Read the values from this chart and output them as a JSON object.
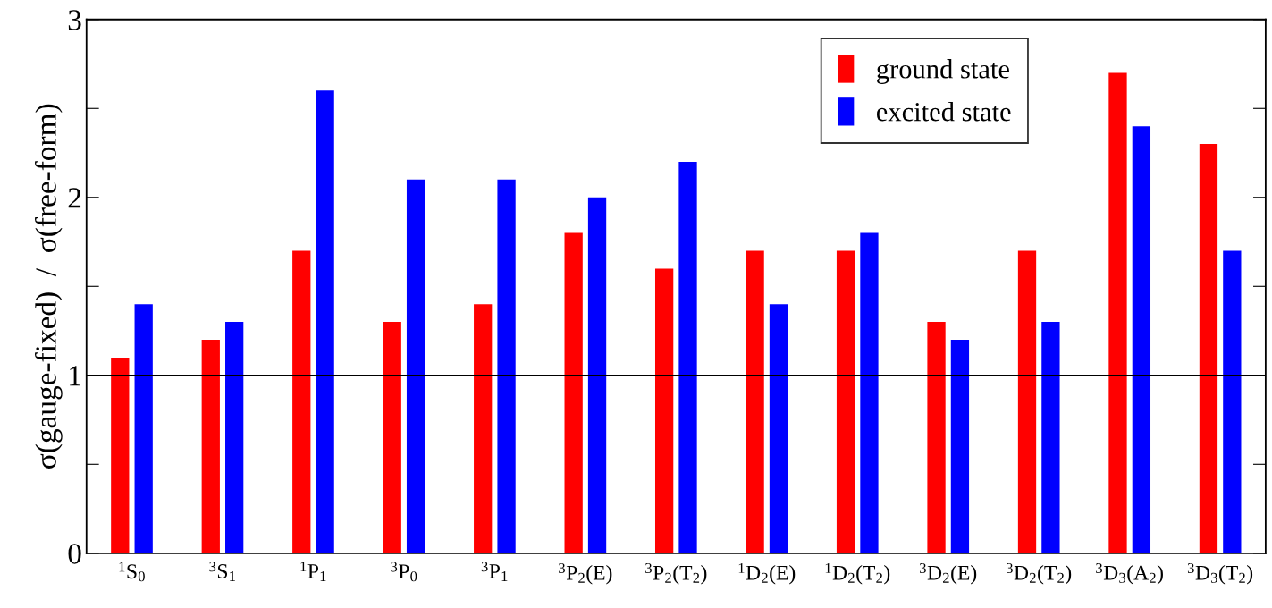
{
  "chart_data": {
    "type": "bar",
    "ylabel": "σ(gauge-fixed)  /  σ(free-form)",
    "categories": [
      "$^{1}$S$_{0}$",
      "$^{3}$S$_{1}$",
      "$^{1}$P$_{1}$",
      "$^{3}$P$_{0}$",
      "$^{3}$P$_{1}$",
      "$^{3}$P$_{2}$(E)",
      "$^{3}$P$_{2}$(T$_{2}$)",
      "$^{1}$D$_{2}$(E)",
      "$^{1}$D$_{2}$(T$_{2}$)",
      "$^{3}$D$_{2}$(E)",
      "$^{3}$D$_{2}$(T$_{2}$)",
      "$^{3}$D$_{3}$(A$_{2}$)",
      "$^{3}$D$_{3}$(T$_{2}$)"
    ],
    "series": [
      {
        "name": "ground state",
        "color": "#ff0000",
        "values": [
          1.1,
          1.2,
          1.7,
          1.3,
          1.4,
          1.8,
          1.6,
          1.7,
          1.7,
          1.3,
          1.7,
          2.7,
          2.3
        ]
      },
      {
        "name": "excited state",
        "color": "#0000ff",
        "values": [
          1.4,
          1.3,
          2.6,
          2.1,
          2.1,
          2.0,
          2.2,
          1.4,
          1.8,
          1.2,
          1.3,
          2.4,
          1.7
        ]
      }
    ],
    "ylim": [
      0,
      3
    ],
    "yticks": [
      0,
      {
        "value": 0.5,
        "label": null
      },
      1,
      {
        "value": 1.5,
        "label": null
      },
      2,
      {
        "value": 2.5,
        "label": null
      },
      3
    ],
    "ref_lines": [
      {
        "axis": "y",
        "value": 1,
        "color": "#000000"
      }
    ],
    "legend": "top right",
    "grid": false
  }
}
